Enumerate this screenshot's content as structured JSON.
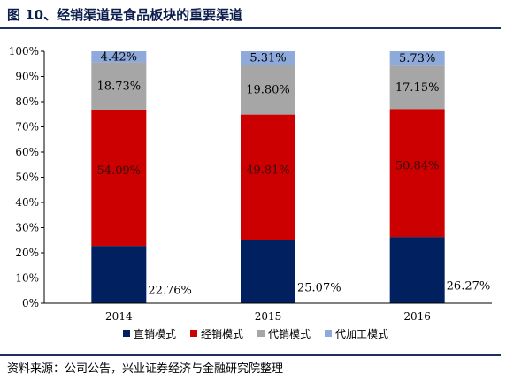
{
  "figure": {
    "title": "图 10、经销渠道是食品板块的重要渠道",
    "source": "资料来源：公司公告，兴业证券经济与金融研究院整理"
  },
  "chart_data": {
    "type": "bar",
    "stacked": true,
    "categories": [
      "2014",
      "2015",
      "2016"
    ],
    "series": [
      {
        "name": "直销模式",
        "color": "#002060",
        "values": [
          22.76,
          25.07,
          26.27
        ],
        "labels": [
          "22.76%",
          "25.07%",
          "26.27%"
        ]
      },
      {
        "name": "经销模式",
        "color": "#cc0000",
        "values": [
          54.09,
          49.81,
          50.84
        ],
        "labels": [
          "54.09%",
          "49.81%",
          "50.84%"
        ]
      },
      {
        "name": "代销模式",
        "color": "#a6a6a6",
        "values": [
          18.73,
          19.8,
          17.15
        ],
        "labels": [
          "18.73%",
          "19.80%",
          "17.15%"
        ]
      },
      {
        "name": "代加工模式",
        "color": "#8eaadb",
        "values": [
          4.42,
          5.31,
          5.73
        ],
        "labels": [
          "4.42%",
          "5.31%",
          "5.73%"
        ]
      }
    ],
    "ylim": [
      0,
      100
    ],
    "yticks": [
      "0%",
      "10%",
      "20%",
      "30%",
      "40%",
      "50%",
      "60%",
      "70%",
      "80%",
      "90%",
      "100%"
    ],
    "legend": "bottom",
    "grid": false
  }
}
